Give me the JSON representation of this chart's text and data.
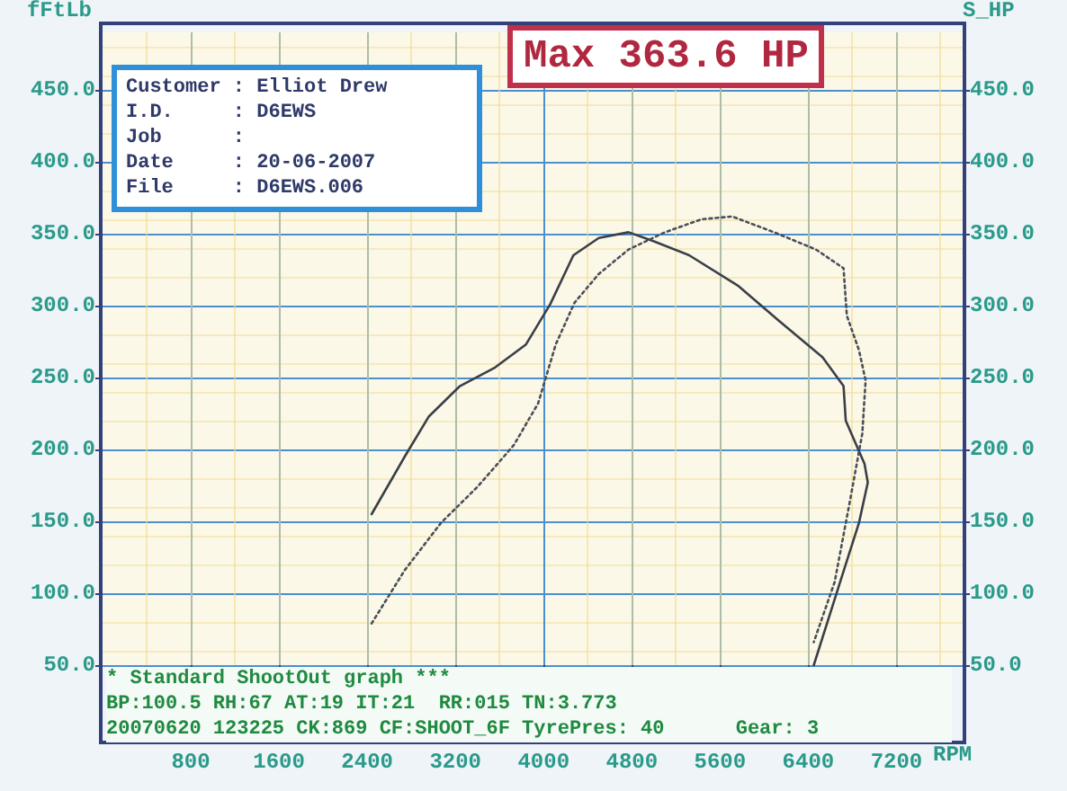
{
  "chart_data": {
    "type": "line",
    "xlabel": "RPM",
    "ylabel": "fFtLb",
    "y2label": "S_HP",
    "annotations": [
      "Customer : Elliot Drew",
      "I.D.     : D6EWS",
      "Job      :",
      "Date     : 20-06-2007",
      "File     : D6EWS.006",
      "Max 363.6 HP",
      "* Standard ShootOut graph ***",
      "BP:100.5 RH:67 AT:19 IT:21  RR:015 TN:3.773",
      "20070620 123225 CK:869 CF:SHOOT_6F TyrePres: 40      Gear: 3"
    ],
    "xlim": [
      0,
      7800
    ],
    "xticks": [
      800,
      1600,
      2400,
      3200,
      4000,
      4800,
      5600,
      6400,
      7200
    ],
    "ylim": [
      50,
      490
    ],
    "yticks": [
      {
        "value": 50,
        "label": "50.0"
      },
      {
        "value": 100,
        "label": "100.0"
      },
      {
        "value": 150,
        "label": "150.0"
      },
      {
        "value": 200,
        "label": "200.0"
      },
      {
        "value": 250,
        "label": "250.0"
      },
      {
        "value": 300,
        "label": "300.0"
      },
      {
        "value": 350,
        "label": "350.0"
      },
      {
        "value": 400,
        "label": "400.0"
      },
      {
        "value": 450,
        "label": "450.0"
      }
    ],
    "y2lim": [
      50,
      490
    ],
    "y2ticks": [
      {
        "value": 50,
        "label": "50.0"
      },
      {
        "value": 100,
        "label": "100.0"
      },
      {
        "value": 150,
        "label": "150.0"
      },
      {
        "value": 200,
        "label": "200.0"
      },
      {
        "value": 250,
        "label": "250.0"
      },
      {
        "value": 300,
        "label": "300.0"
      },
      {
        "value": 350,
        "label": "350.0"
      },
      {
        "value": 400,
        "label": "400.0"
      },
      {
        "value": 450,
        "label": "450.0"
      }
    ],
    "grid": true,
    "marker": "none",
    "series": [
      {
        "color": "#3a3f48",
        "line_style": "solid",
        "x": [
          2440,
          2740,
          2960,
          3240,
          3560,
          3840,
          4060,
          4270,
          4500,
          4770,
          4990,
          5320,
          5760,
          6140,
          6530,
          6720,
          6740,
          6910,
          6940,
          6860,
          6690,
          6450
        ],
        "values": [
          155,
          195,
          223,
          244,
          257,
          273,
          301,
          335,
          347,
          351,
          345,
          335,
          314,
          289,
          264,
          244,
          220,
          190,
          177,
          149,
          108,
          50
        ]
      },
      {
        "color": "#4a4f58",
        "line_style": "dotted",
        "axis": "y2",
        "x": [
          2440,
          2740,
          3070,
          3400,
          3730,
          3950,
          4110,
          4280,
          4500,
          4770,
          5100,
          5430,
          5710,
          6090,
          6470,
          6720,
          6750,
          6860,
          6920,
          6890,
          6780,
          6640,
          6450
        ],
        "values": [
          79,
          116,
          149,
          174,
          203,
          232,
          273,
          302,
          322,
          339,
          351,
          360,
          362,
          351,
          339,
          326,
          293,
          269,
          248,
          211,
          165,
          108,
          66
        ]
      }
    ]
  }
}
